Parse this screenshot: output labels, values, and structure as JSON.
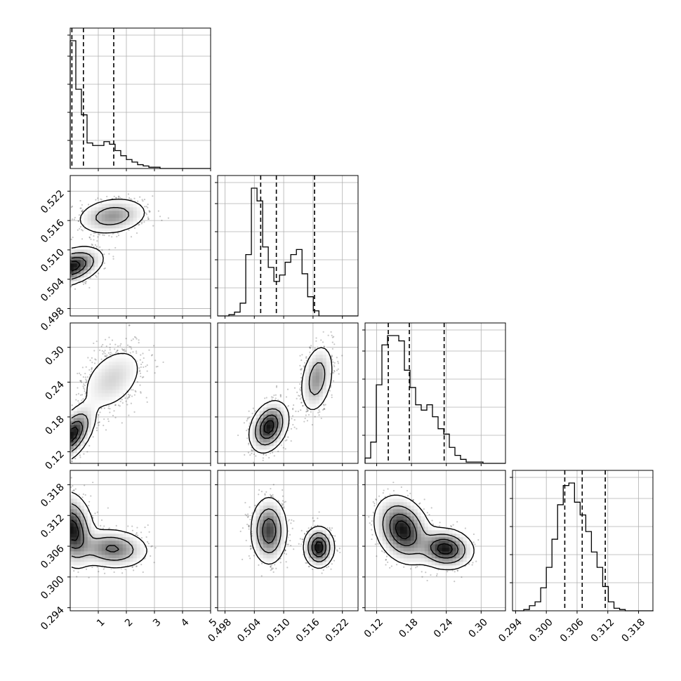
{
  "chart_data": {
    "type": "corner",
    "title": "",
    "axis_labels": [
      "",
      "",
      "",
      ""
    ],
    "grid": true,
    "quantile_style": "dashed vertical lines",
    "parameters": [
      {
        "range": [
          0.0,
          5.0
        ],
        "ticks": [
          1,
          2,
          3,
          4,
          5
        ],
        "tick_labels": [
          "1",
          "2",
          "3",
          "4",
          "5"
        ],
        "quantiles": [
          0.06,
          0.47,
          1.55
        ],
        "hist": {
          "bin_start": 0.0,
          "bin_width": 0.2,
          "values": [
            1.0,
            0.62,
            0.42,
            0.2,
            0.18,
            0.18,
            0.21,
            0.19,
            0.14,
            0.1,
            0.07,
            0.05,
            0.03,
            0.02,
            0.01,
            0.01,
            0,
            0,
            0,
            0,
            0,
            0,
            0,
            0,
            0
          ]
        }
      },
      {
        "range": [
          0.4965,
          0.5252
        ],
        "ticks": [
          0.498,
          0.504,
          0.51,
          0.516,
          0.522
        ],
        "tick_labels": [
          "0.498",
          "0.504",
          "0.510",
          "0.516",
          "0.522"
        ],
        "quantiles": [
          0.5053,
          0.5085,
          0.5163
        ],
        "hist": {
          "bin_start": 0.4965,
          "bin_width": 0.00115,
          "values": [
            0,
            0,
            0.01,
            0.03,
            0.1,
            0.48,
            1.0,
            0.9,
            0.54,
            0.38,
            0.27,
            0.32,
            0.42,
            0.48,
            0.52,
            0.33,
            0.15,
            0.04,
            0,
            0,
            0,
            0,
            0,
            0,
            0
          ]
        }
      },
      {
        "range": [
          0.1,
          0.342
        ],
        "ticks": [
          0.12,
          0.18,
          0.24,
          0.3
        ],
        "tick_labels": [
          "0.12",
          "0.18",
          "0.24",
          "0.30"
        ],
        "quantiles": [
          0.14,
          0.1763,
          0.2363
        ],
        "hist": {
          "bin_start": 0.1,
          "bin_width": 0.00968,
          "values": [
            0.04,
            0.16,
            0.59,
            0.89,
            0.96,
            0.96,
            0.92,
            0.7,
            0.57,
            0.44,
            0.4,
            0.44,
            0.35,
            0.26,
            0.22,
            0.12,
            0.06,
            0.03,
            0.01,
            0.01,
            0.01,
            0,
            0,
            0,
            0
          ]
        }
      },
      {
        "range": [
          0.2934,
          0.3208
        ],
        "ticks": [
          0.294,
          0.3,
          0.306,
          0.312,
          0.318
        ],
        "tick_labels": [
          "0.294",
          "0.300",
          "0.306",
          "0.312",
          "0.318"
        ],
        "quantiles": [
          0.3036,
          0.307,
          0.3115
        ],
        "hist": {
          "bin_start": 0.2934,
          "bin_width": 0.0011,
          "values": [
            0,
            0,
            0.01,
            0.04,
            0.07,
            0.18,
            0.34,
            0.56,
            0.83,
            0.98,
            1.0,
            0.85,
            0.75,
            0.62,
            0.46,
            0.34,
            0.19,
            0.07,
            0.02,
            0.01,
            0,
            0,
            0,
            0,
            0
          ]
        }
      }
    ],
    "pairs": [
      {
        "x": 0,
        "y": 1,
        "modes": [
          {
            "mx": 0.05,
            "my": 0.5066,
            "sx": 0.5,
            "sy": 0.0018,
            "rho": 0.4,
            "w": 0.62
          },
          {
            "mx": 1.5,
            "my": 0.5169,
            "sx": 0.6,
            "sy": 0.0018,
            "rho": 0.2,
            "w": 0.38
          }
        ]
      },
      {
        "x": 0,
        "y": 2,
        "modes": [
          {
            "mx": 0.08,
            "my": 0.15,
            "sx": 0.35,
            "sy": 0.022,
            "rho": 0.55,
            "w": 0.62
          },
          {
            "mx": 1.5,
            "my": 0.245,
            "sx": 0.6,
            "sy": 0.03,
            "rho": 0.4,
            "w": 0.38
          }
        ]
      },
      {
        "x": 0,
        "y": 3,
        "modes": [
          {
            "mx": 0.08,
            "my": 0.3092,
            "sx": 0.35,
            "sy": 0.0033,
            "rho": -0.2,
            "w": 0.62
          },
          {
            "mx": 1.5,
            "my": 0.3055,
            "sx": 0.6,
            "sy": 0.0018,
            "rho": -0.1,
            "w": 0.38
          }
        ]
      },
      {
        "x": 1,
        "y": 2,
        "modes": [
          {
            "mx": 0.507,
            "my": 0.163,
            "sx": 0.0018,
            "sy": 0.02,
            "rho": 0.3,
            "w": 0.62
          },
          {
            "mx": 0.5168,
            "my": 0.246,
            "sx": 0.0016,
            "sy": 0.028,
            "rho": 0.3,
            "w": 0.38
          }
        ]
      },
      {
        "x": 1,
        "y": 3,
        "modes": [
          {
            "mx": 0.507,
            "my": 0.309,
            "sx": 0.0017,
            "sy": 0.003,
            "rho": 0.0,
            "w": 0.62
          },
          {
            "mx": 0.5172,
            "my": 0.3058,
            "sx": 0.0014,
            "sy": 0.0018,
            "rho": 0.0,
            "w": 0.38
          }
        ]
      },
      {
        "x": 2,
        "y": 3,
        "modes": [
          {
            "mx": 0.165,
            "my": 0.3092,
            "sx": 0.022,
            "sy": 0.003,
            "rho": -0.25,
            "w": 0.62
          },
          {
            "mx": 0.238,
            "my": 0.3055,
            "sx": 0.022,
            "sy": 0.0018,
            "rho": -0.1,
            "w": 0.38
          }
        ]
      }
    ]
  }
}
